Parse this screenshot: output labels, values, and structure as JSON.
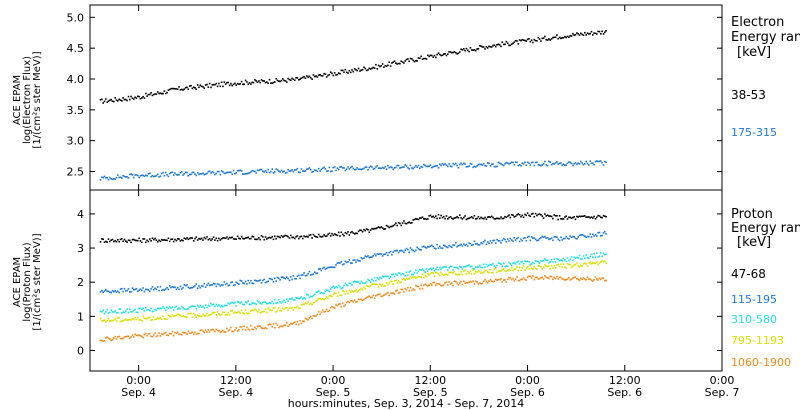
{
  "chart_data": [
    {
      "type": "scatter",
      "ylabel_lines": [
        "ACE EPAM",
        "log(Electron Flux)",
        "[1/(cm²s ster MeV)]"
      ],
      "ylim": [
        2.2,
        5.2
      ],
      "yticks": [
        "2.5",
        "3.0",
        "3.5",
        "4.0",
        "4.5",
        "5.0"
      ],
      "legend_lines": [
        "Electron",
        "Energy ran",
        "[keV]"
      ],
      "series": [
        {
          "name": "38-53",
          "color": "#000000",
          "x": [
            -0.2,
            0.0,
            0.2,
            0.5,
            0.8,
            1.0,
            1.2,
            1.5,
            1.8,
            2.0,
            2.2,
            2.4
          ],
          "y": [
            3.65,
            3.72,
            3.85,
            3.95,
            4.0,
            4.1,
            4.2,
            4.38,
            4.55,
            4.63,
            4.72,
            4.78
          ]
        },
        {
          "name": "175-315",
          "color": "#1e78d2",
          "x": [
            -0.2,
            0.0,
            0.5,
            1.0,
            1.5,
            1.8,
            2.0,
            2.4
          ],
          "y": [
            2.4,
            2.45,
            2.5,
            2.55,
            2.6,
            2.62,
            2.64,
            2.65
          ]
        }
      ]
    },
    {
      "type": "scatter",
      "ylabel_lines": [
        "ACE EPAM",
        "log(Proton Flux)",
        "[1/(cm²s ster MeV)]"
      ],
      "ylim": [
        -0.6,
        4.7
      ],
      "yticks": [
        "0",
        "1",
        "2",
        "3",
        "4"
      ],
      "legend_lines": [
        "Proton",
        "Energy ran",
        "[keV]"
      ],
      "series": [
        {
          "name": "47-68",
          "color": "#000000",
          "x": [
            -0.2,
            0.0,
            0.4,
            0.8,
            1.0,
            1.2,
            1.5,
            1.8,
            2.0,
            2.2,
            2.4
          ],
          "y": [
            3.25,
            3.25,
            3.3,
            3.35,
            3.4,
            3.55,
            3.95,
            3.9,
            4.0,
            3.9,
            3.95
          ]
        },
        {
          "name": "115-195",
          "color": "#1e78d2",
          "x": [
            -0.2,
            0.0,
            0.4,
            0.8,
            1.0,
            1.2,
            1.5,
            1.8,
            2.0,
            2.2,
            2.4
          ],
          "y": [
            1.75,
            1.8,
            1.95,
            2.15,
            2.5,
            2.8,
            3.05,
            3.2,
            3.3,
            3.3,
            3.45
          ]
        },
        {
          "name": "310-580",
          "color": "#22e0e0",
          "x": [
            -0.2,
            0.0,
            0.4,
            0.8,
            1.0,
            1.2,
            1.5,
            1.8,
            2.0,
            2.2,
            2.4
          ],
          "y": [
            1.15,
            1.2,
            1.35,
            1.5,
            1.85,
            2.1,
            2.4,
            2.5,
            2.6,
            2.7,
            2.85
          ]
        },
        {
          "name": "795-1193",
          "color": "#d8e000",
          "x": [
            -0.2,
            0.0,
            0.4,
            0.8,
            1.0,
            1.2,
            1.5,
            1.8,
            2.0,
            2.2,
            2.4
          ],
          "y": [
            0.9,
            0.95,
            1.1,
            1.25,
            1.65,
            1.9,
            2.25,
            2.35,
            2.45,
            2.5,
            2.6
          ]
        },
        {
          "name": "1060-1900",
          "color": "#f08a1e",
          "x": [
            -0.2,
            0.0,
            0.4,
            0.8,
            1.0,
            1.2,
            1.5,
            1.8,
            2.0,
            2.2,
            2.4
          ],
          "y": [
            0.35,
            0.45,
            0.6,
            0.8,
            1.3,
            1.6,
            1.95,
            2.05,
            2.15,
            2.15,
            2.1
          ]
        }
      ]
    }
  ],
  "x_axis": {
    "xlim": [
      -0.25,
      3.0
    ],
    "ticks": [
      {
        "x": 0.0,
        "time": "0:00",
        "date": "Sep. 4"
      },
      {
        "x": 0.5,
        "time": "12:00",
        "date": "Sep. 4"
      },
      {
        "x": 1.0,
        "time": "0:00",
        "date": "Sep. 5"
      },
      {
        "x": 1.5,
        "time": "12:00",
        "date": "Sep. 5"
      },
      {
        "x": 2.0,
        "time": "0:00",
        "date": "Sep. 6"
      },
      {
        "x": 2.5,
        "time": "12:00",
        "date": "Sep. 6"
      },
      {
        "x": 3.0,
        "time": "0:00",
        "date": "Sep. 7"
      }
    ],
    "caption": "hours:minutes, Sep.  3, 2014 - Sep.  7, 2014"
  }
}
